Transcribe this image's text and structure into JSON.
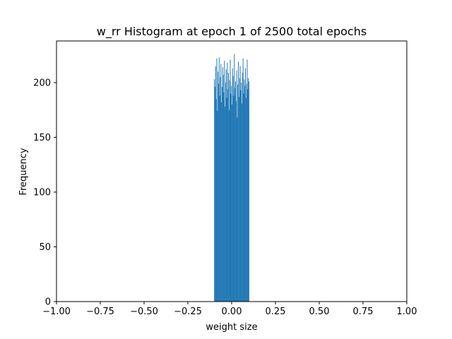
{
  "chart_data": {
    "type": "bar",
    "title": "w_rr Histogram at epoch 1 of 2500 total epochs",
    "xlabel": "weight size",
    "ylabel": "Frequency",
    "xlim": [
      -1.0,
      1.0
    ],
    "ylim": [
      0,
      238
    ],
    "grid": false,
    "bar_color": "#1f77b4",
    "x_ticks": [
      -1.0,
      -0.75,
      -0.5,
      -0.25,
      0.0,
      0.25,
      0.5,
      0.75,
      1.0
    ],
    "x_tick_labels": [
      "−1.00",
      "−0.75",
      "−0.50",
      "−0.25",
      "0.00",
      "0.25",
      "0.50",
      "0.75",
      "1.00"
    ],
    "y_ticks": [
      0,
      50,
      100,
      150,
      200
    ],
    "y_tick_labels": [
      "0",
      "50",
      "100",
      "150",
      "200"
    ],
    "bin_range": [
      -0.1,
      0.1
    ],
    "values": [
      203,
      196,
      215,
      185,
      222,
      174,
      210,
      199,
      223,
      188,
      205,
      217,
      182,
      196,
      214,
      207,
      191,
      220,
      178,
      200,
      212,
      186,
      218,
      194,
      209,
      175,
      202,
      221,
      190,
      197,
      180,
      213,
      206,
      188,
      226,
      195,
      201,
      183,
      211,
      168,
      198,
      219,
      187,
      204,
      215,
      193,
      200,
      181,
      209,
      222,
      190,
      203,
      197,
      213,
      186,
      199,
      221,
      194,
      204,
      201
    ]
  }
}
